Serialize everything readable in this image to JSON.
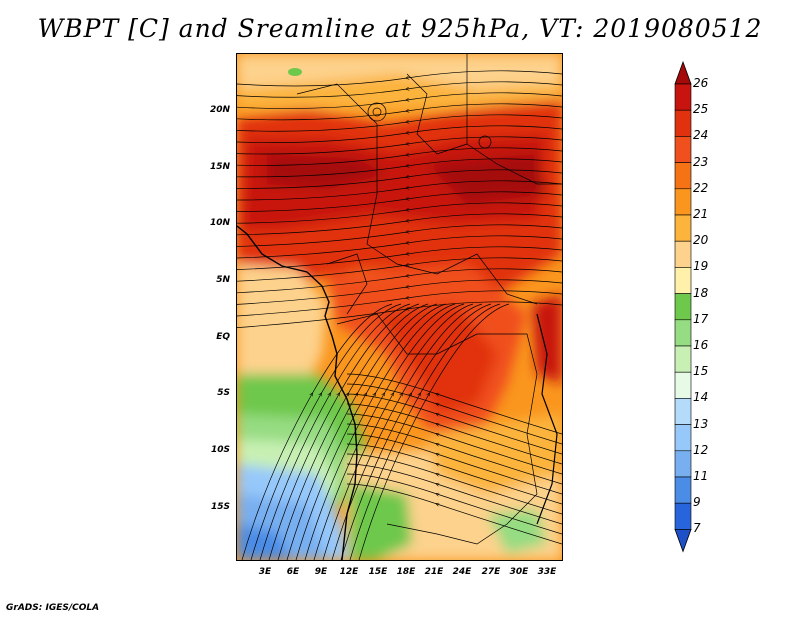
{
  "title": "WBPT [C] and Sreamline at 925hPa, VT: 2019080512",
  "credit": "GrADS: IGES/COLA",
  "map": {
    "lat_labels": [
      "20N",
      "15N",
      "10N",
      "5N",
      "EQ",
      "5S",
      "10S",
      "15S"
    ],
    "lon_labels": [
      "3E",
      "6E",
      "9E",
      "12E",
      "15E",
      "18E",
      "21E",
      "24E",
      "27E",
      "30E",
      "33E"
    ]
  },
  "colorbar": {
    "labels": [
      "26",
      "25",
      "24",
      "23",
      "22",
      "21",
      "20",
      "19",
      "18",
      "17",
      "16",
      "15",
      "14",
      "13",
      "12",
      "11",
      "9",
      "7"
    ],
    "colors": [
      "#a50a0a",
      "#c8140f",
      "#e1320f",
      "#f0501e",
      "#f57314",
      "#fa961e",
      "#fcb43c",
      "#fdd28c",
      "#fff0aa",
      "#6ec84b",
      "#96dc82",
      "#c8f0b4",
      "#e6fae6",
      "#b4dcfa",
      "#96c8fa",
      "#78aff0",
      "#4b8ce6",
      "#2864dc",
      "#1e50c8"
    ]
  }
}
